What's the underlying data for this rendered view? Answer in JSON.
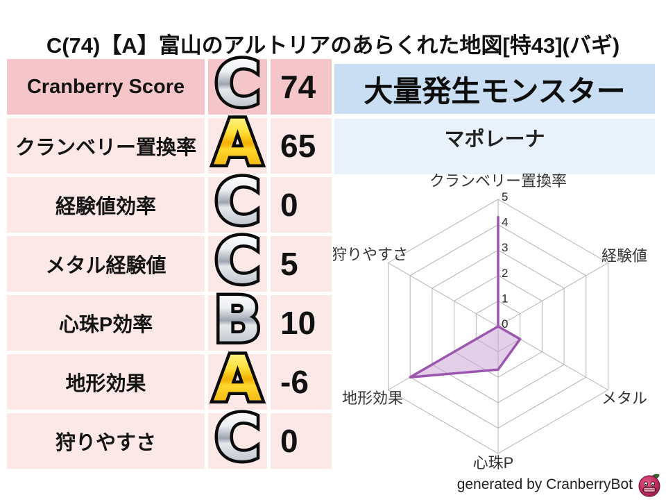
{
  "title": "C(74)【A】富山のアルトリアのあらくれた地図[特43](バギ)",
  "stats_table": {
    "rows": [
      {
        "label": "Cranberry Score",
        "grade": "C",
        "tone": "silver",
        "value": "74"
      },
      {
        "label": "クランベリー置換率",
        "grade": "A",
        "tone": "gold",
        "value": "65"
      },
      {
        "label": "経験値効率",
        "grade": "C",
        "tone": "silver",
        "value": "0"
      },
      {
        "label": "メタル経験値",
        "grade": "C",
        "tone": "silver",
        "value": "5"
      },
      {
        "label": "心珠P効率",
        "grade": "B",
        "tone": "silver",
        "value": "10"
      },
      {
        "label": "地形効果",
        "grade": "A",
        "tone": "gold",
        "value": "-6"
      },
      {
        "label": "狩りやすさ",
        "grade": "C",
        "tone": "silver",
        "value": "0"
      }
    ]
  },
  "monster_panel": {
    "header": "大量発生モンスター",
    "monster_name": "マポレーナ"
  },
  "chart_data": {
    "type": "radar",
    "categories": [
      "クランベリー置換率",
      "経験値",
      "メタル",
      "心珠P",
      "地形効果",
      "狩りやすさ"
    ],
    "values": [
      4.3,
      0,
      1,
      1.7,
      4,
      0
    ],
    "ylim": [
      0,
      5
    ],
    "ticks": [
      0,
      1,
      2,
      3,
      4,
      5
    ],
    "grid": true,
    "legend": "none",
    "stroke_color": "#9b57ad",
    "fill_color": "#c9a0d6"
  },
  "footer": {
    "credit": "generated by CranberryBot",
    "logo": "cranberry-bot-icon"
  },
  "colors": {
    "row_primary_bg": "#f5c6c9",
    "row_bg": "#fce8e7",
    "header_blue": "#c9def3",
    "cell_blue": "#e9f2fb",
    "grid_gray": "#b3b3b3"
  }
}
